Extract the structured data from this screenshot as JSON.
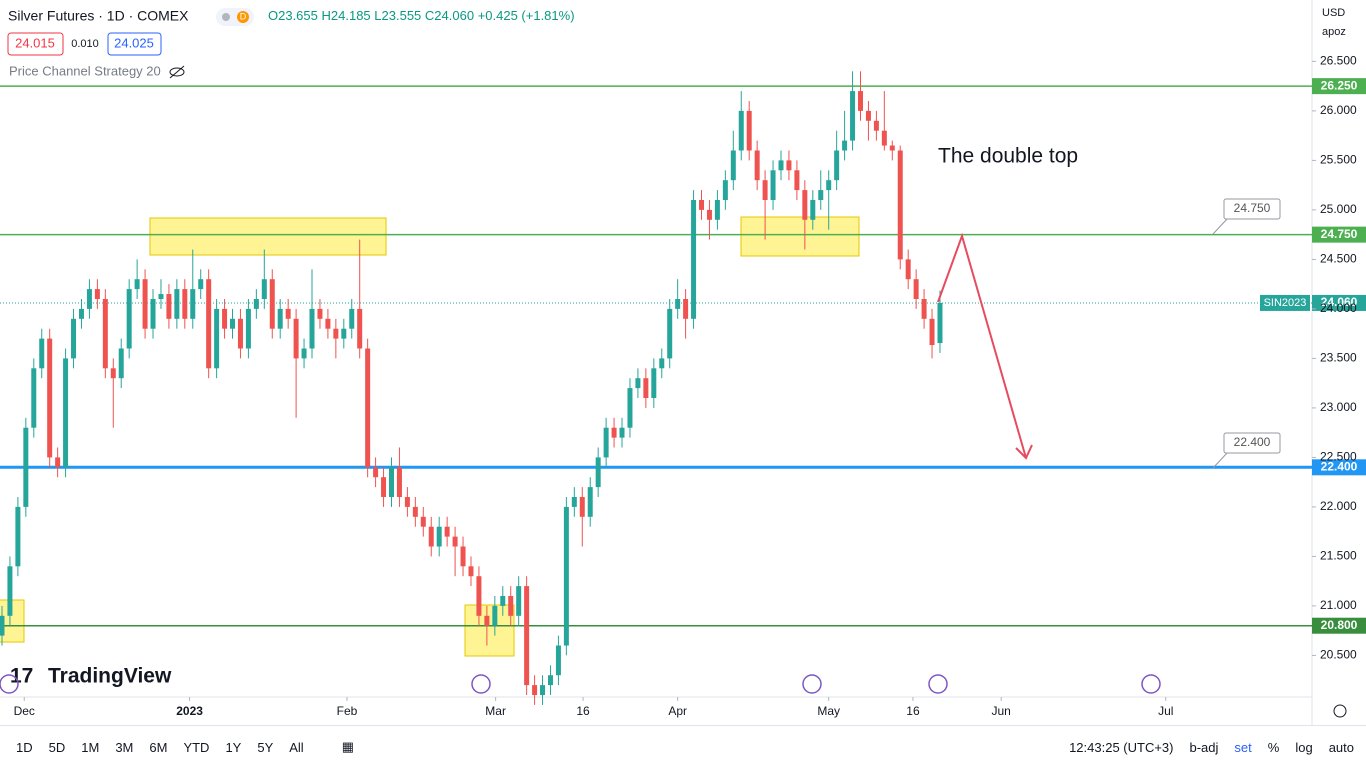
{
  "header": {
    "symbol": "Silver Futures · 1D · COMEX",
    "badge": "D",
    "open": "O23.655",
    "high": "H24.185",
    "low": "L23.555",
    "close": "C24.060",
    "change": "+0.425 (+1.81%)",
    "bid": "24.015",
    "spread": "0.010",
    "ask": "24.025",
    "indicator": "Price Channel Strategy 20"
  },
  "scale": {
    "currency": "USD",
    "unit": "apoz"
  },
  "logo": "TradingView",
  "annotation": "The double top",
  "callouts": [
    "24.750",
    "22.400"
  ],
  "toolbar": {
    "ranges": [
      "1D",
      "5D",
      "1M",
      "3M",
      "6M",
      "YTD",
      "1Y",
      "5Y",
      "All"
    ],
    "time": "12:43:25 (UTC+3)",
    "options": [
      "b-adj",
      "set",
      "%",
      "log",
      "auto"
    ]
  },
  "chart_data": {
    "type": "candlestick",
    "up_color": "#26a69a",
    "down_color": "#ef5350",
    "xlim": [
      -0.25,
      164.8
    ],
    "ylim": [
      20.08,
      27.12
    ],
    "xticks": [
      {
        "value": 2.8,
        "label": "Dec"
      },
      {
        "value": 23.6,
        "label": "2023"
      },
      {
        "value": 43.4,
        "label": "Feb"
      },
      {
        "value": 62.1,
        "label": "Mar"
      },
      {
        "value": 73.1,
        "label": "16"
      },
      {
        "value": 85,
        "label": "Apr"
      },
      {
        "value": 104,
        "label": "May"
      },
      {
        "value": 114.6,
        "label": "16"
      },
      {
        "value": 125.7,
        "label": "Jun"
      },
      {
        "value": 146.4,
        "label": "Jul"
      }
    ],
    "yticks": [
      {
        "value": 20.5,
        "label": "20.500"
      },
      {
        "value": 21,
        "label": "21.000"
      },
      {
        "value": 21.5,
        "label": "21.500"
      },
      {
        "value": 22,
        "label": "22.000"
      },
      {
        "value": 22.5,
        "label": "22.500"
      },
      {
        "value": 23,
        "label": "23.000"
      },
      {
        "value": 23.5,
        "label": "23.500"
      },
      {
        "value": 24,
        "label": "24.000"
      },
      {
        "value": 24.5,
        "label": "24.500"
      },
      {
        "value": 25,
        "label": "25.000"
      },
      {
        "value": 25.5,
        "label": "25.500"
      },
      {
        "value": 26,
        "label": "26.000"
      },
      {
        "value": 26.5,
        "label": "26.500"
      }
    ],
    "levels": [
      {
        "value": 26.25,
        "label": "26.250",
        "color": "#4caf50"
      },
      {
        "value": 24.75,
        "label": "24.750",
        "color": "#4caf50"
      },
      {
        "value": 22.4,
        "label": "22.400",
        "color": "#2196f3"
      },
      {
        "value": 20.8,
        "label": "20.800",
        "color": "#388e3c"
      }
    ],
    "last": {
      "value": 24.06,
      "label": "24.060",
      "name": "SIN2023"
    },
    "candles": [
      [
        20.7,
        21.0,
        20.6,
        20.9
      ],
      [
        20.9,
        21.5,
        20.8,
        21.4
      ],
      [
        21.4,
        22.1,
        21.3,
        22.0
      ],
      [
        22.0,
        22.9,
        21.9,
        22.8
      ],
      [
        22.8,
        23.5,
        22.7,
        23.4
      ],
      [
        23.4,
        23.8,
        23.3,
        23.7
      ],
      [
        23.7,
        23.8,
        22.4,
        22.5
      ],
      [
        22.5,
        22.6,
        22.3,
        22.4
      ],
      [
        22.4,
        23.6,
        22.3,
        23.5
      ],
      [
        23.5,
        24.0,
        23.4,
        23.9
      ],
      [
        23.9,
        24.1,
        23.8,
        24.0
      ],
      [
        24.0,
        24.3,
        23.9,
        24.2
      ],
      [
        24.2,
        24.3,
        24.0,
        24.1
      ],
      [
        24.1,
        24.2,
        23.3,
        23.4
      ],
      [
        23.4,
        23.5,
        22.8,
        23.3
      ],
      [
        23.3,
        23.7,
        23.2,
        23.6
      ],
      [
        23.6,
        24.3,
        23.5,
        24.2
      ],
      [
        24.2,
        24.5,
        24.1,
        24.3
      ],
      [
        24.3,
        24.4,
        23.7,
        23.8
      ],
      [
        23.8,
        24.2,
        23.7,
        24.1
      ],
      [
        24.1,
        24.3,
        24.0,
        24.15
      ],
      [
        24.15,
        24.25,
        23.8,
        23.9
      ],
      [
        23.9,
        24.3,
        23.8,
        24.2
      ],
      [
        24.2,
        24.3,
        23.8,
        23.9
      ],
      [
        23.9,
        24.6,
        23.8,
        24.2
      ],
      [
        24.2,
        24.4,
        24.1,
        24.3
      ],
      [
        24.3,
        24.4,
        23.3,
        23.4
      ],
      [
        23.4,
        24.1,
        23.3,
        24.0
      ],
      [
        24.0,
        24.1,
        23.7,
        23.8
      ],
      [
        23.8,
        24.0,
        23.7,
        23.9
      ],
      [
        23.9,
        24.0,
        23.5,
        23.6
      ],
      [
        23.6,
        24.1,
        23.5,
        24.0
      ],
      [
        24.0,
        24.2,
        23.9,
        24.1
      ],
      [
        24.1,
        24.6,
        24.0,
        24.3
      ],
      [
        24.3,
        24.4,
        23.7,
        23.8
      ],
      [
        23.8,
        24.1,
        23.7,
        24.0
      ],
      [
        24.0,
        24.1,
        23.8,
        23.9
      ],
      [
        23.9,
        24.0,
        22.9,
        23.5
      ],
      [
        23.5,
        23.7,
        23.4,
        23.6
      ],
      [
        23.6,
        24.4,
        23.5,
        24.0
      ],
      [
        24.0,
        24.1,
        23.8,
        23.9
      ],
      [
        23.9,
        24.0,
        23.7,
        23.8
      ],
      [
        23.8,
        23.9,
        23.5,
        23.7
      ],
      [
        23.7,
        23.9,
        23.6,
        23.8
      ],
      [
        23.8,
        24.1,
        23.7,
        24.0
      ],
      [
        24.0,
        24.7,
        23.5,
        23.6
      ],
      [
        23.6,
        23.7,
        22.3,
        22.4
      ],
      [
        22.4,
        22.5,
        22.2,
        22.3
      ],
      [
        22.3,
        22.4,
        22.0,
        22.1
      ],
      [
        22.1,
        22.5,
        22.0,
        22.4
      ],
      [
        22.4,
        22.6,
        22.0,
        22.1
      ],
      [
        22.1,
        22.2,
        21.9,
        22.0
      ],
      [
        22.0,
        22.1,
        21.8,
        21.9
      ],
      [
        21.9,
        22.0,
        21.7,
        21.8
      ],
      [
        21.8,
        21.9,
        21.5,
        21.6
      ],
      [
        21.6,
        21.9,
        21.5,
        21.8
      ],
      [
        21.8,
        21.9,
        21.6,
        21.7
      ],
      [
        21.7,
        21.8,
        21.3,
        21.6
      ],
      [
        21.6,
        21.7,
        21.3,
        21.4
      ],
      [
        21.4,
        21.5,
        21.2,
        21.3
      ],
      [
        21.3,
        21.4,
        20.8,
        20.9
      ],
      [
        20.9,
        21.0,
        20.6,
        20.8
      ],
      [
        20.8,
        21.1,
        20.7,
        21.0
      ],
      [
        21.0,
        21.2,
        20.9,
        21.1
      ],
      [
        21.1,
        21.2,
        20.8,
        20.9
      ],
      [
        20.9,
        21.3,
        20.8,
        21.2
      ],
      [
        21.2,
        21.3,
        20.1,
        20.2
      ],
      [
        20.2,
        20.3,
        20.0,
        20.1
      ],
      [
        20.1,
        20.3,
        20.0,
        20.2
      ],
      [
        20.2,
        20.4,
        20.1,
        20.3
      ],
      [
        20.3,
        20.7,
        20.2,
        20.6
      ],
      [
        20.6,
        22.1,
        20.5,
        22.0
      ],
      [
        22.0,
        22.2,
        21.9,
        22.1
      ],
      [
        22.1,
        22.2,
        21.6,
        21.9
      ],
      [
        21.9,
        22.3,
        21.8,
        22.2
      ],
      [
        22.2,
        22.6,
        22.1,
        22.5
      ],
      [
        22.5,
        22.9,
        22.4,
        22.8
      ],
      [
        22.8,
        22.9,
        22.6,
        22.7
      ],
      [
        22.7,
        22.9,
        22.6,
        22.8
      ],
      [
        22.8,
        23.3,
        22.7,
        23.2
      ],
      [
        23.2,
        23.4,
        23.1,
        23.3
      ],
      [
        23.3,
        23.4,
        23.0,
        23.1
      ],
      [
        23.1,
        23.5,
        23.0,
        23.4
      ],
      [
        23.4,
        23.6,
        23.3,
        23.5
      ],
      [
        23.5,
        24.1,
        23.4,
        24.0
      ],
      [
        24.0,
        24.3,
        23.9,
        24.1
      ],
      [
        24.1,
        24.2,
        23.7,
        23.9
      ],
      [
        23.9,
        25.2,
        23.8,
        25.1
      ],
      [
        25.1,
        25.2,
        24.9,
        25.0
      ],
      [
        25.0,
        25.1,
        24.7,
        24.9
      ],
      [
        24.9,
        25.2,
        24.8,
        25.1
      ],
      [
        25.1,
        25.4,
        25.0,
        25.3
      ],
      [
        25.3,
        25.8,
        25.2,
        25.6
      ],
      [
        25.6,
        26.2,
        25.5,
        26.0
      ],
      [
        26.0,
        26.1,
        25.5,
        25.6
      ],
      [
        25.6,
        25.7,
        25.2,
        25.3
      ],
      [
        25.3,
        25.4,
        24.7,
        25.1
      ],
      [
        25.1,
        25.5,
        25.0,
        25.4
      ],
      [
        25.4,
        25.6,
        25.3,
        25.5
      ],
      [
        25.5,
        25.6,
        25.3,
        25.4
      ],
      [
        25.4,
        25.5,
        25.1,
        25.2
      ],
      [
        25.2,
        25.3,
        24.6,
        24.9
      ],
      [
        24.9,
        25.2,
        24.8,
        25.1
      ],
      [
        25.1,
        25.4,
        25.0,
        25.2
      ],
      [
        25.2,
        25.4,
        24.8,
        25.3
      ],
      [
        25.3,
        25.8,
        25.2,
        25.6
      ],
      [
        25.6,
        26.0,
        25.5,
        25.7
      ],
      [
        25.7,
        26.4,
        25.6,
        26.2
      ],
      [
        26.2,
        26.4,
        25.9,
        26.0
      ],
      [
        26.0,
        26.1,
        25.7,
        25.9
      ],
      [
        25.9,
        26.0,
        25.7,
        25.8
      ],
      [
        25.8,
        26.2,
        25.6,
        25.65
      ],
      [
        25.65,
        25.7,
        25.5,
        25.6
      ],
      [
        25.6,
        25.65,
        24.4,
        24.5
      ],
      [
        24.5,
        24.6,
        24.2,
        24.3
      ],
      [
        24.3,
        24.4,
        24.0,
        24.1
      ],
      [
        24.1,
        24.2,
        23.8,
        23.9
      ],
      [
        23.9,
        24.0,
        23.5,
        23.635
      ],
      [
        23.655,
        24.185,
        23.555,
        24.06
      ]
    ]
  }
}
